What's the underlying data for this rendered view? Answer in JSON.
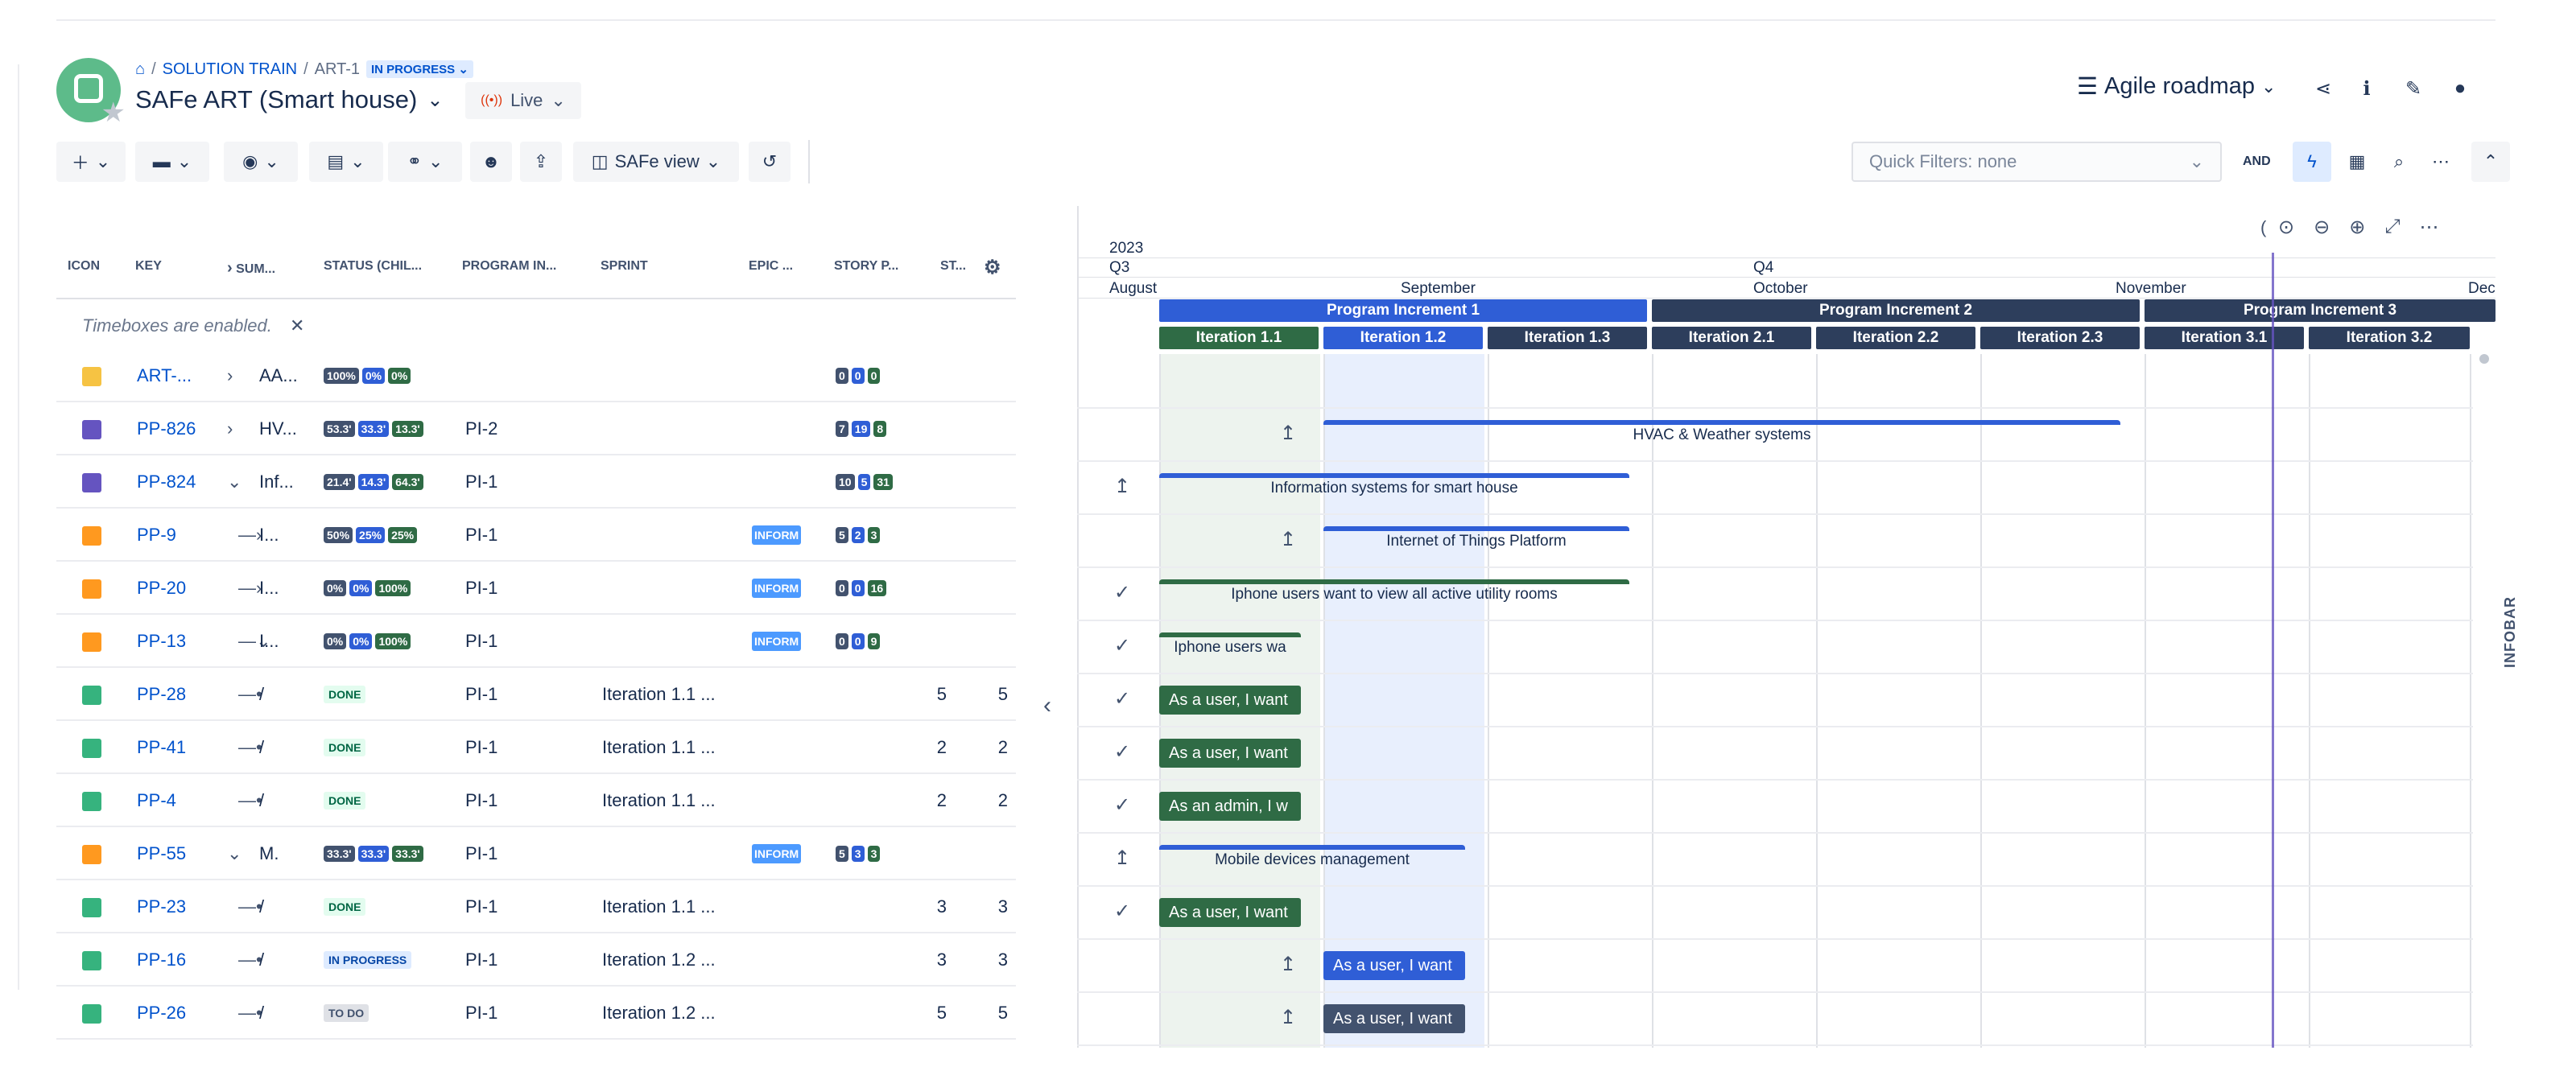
{
  "breadcrumb": {
    "home": "SOLUTION TRAIN",
    "art": "ART-1",
    "status": "IN PROGRESS"
  },
  "header": {
    "title": "SAFe ART (Smart house)",
    "live": "Live",
    "roadmap": "Agile roadmap"
  },
  "toolbar": {
    "view_label": "SAFe view",
    "quick_filters": "Quick Filters: none",
    "and_label": "AND"
  },
  "columns": [
    "ICON",
    "KEY",
    "SUM...",
    "STATUS (CHIL...",
    "PROGRAM IN...",
    "SPRINT",
    "EPIC ...",
    "STORY P...",
    "ST..."
  ],
  "timebox_note": "Timeboxes are enabled.",
  "rows": [
    {
      "key": "ART-...",
      "summary": "AA...",
      "status": [
        "100%",
        "0%",
        "0%"
      ],
      "pi": "",
      "sprint": "",
      "epic": "",
      "story": [
        "0",
        "0",
        "0"
      ],
      "sp": "",
      "st": ""
    },
    {
      "key": "PP-826",
      "summary": "HV...",
      "status": [
        "53.3'",
        "33.3'",
        "13.3'"
      ],
      "pi": "PI-2",
      "sprint": "",
      "epic": "",
      "story": [
        "7",
        "19",
        "8"
      ],
      "sp": "",
      "st": ""
    },
    {
      "key": "PP-824",
      "summary": "Inf...",
      "status": [
        "21.4'",
        "14.3'",
        "64.3'"
      ],
      "pi": "PI-1",
      "sprint": "",
      "epic": "",
      "story": [
        "10",
        "5",
        "31"
      ],
      "sp": "",
      "st": ""
    },
    {
      "key": "PP-9",
      "summary": "I...",
      "status": [
        "50%",
        "25%",
        "25%"
      ],
      "pi": "PI-1",
      "sprint": "",
      "epic": "INFORM",
      "story": [
        "5",
        "2",
        "3"
      ],
      "sp": "",
      "st": ""
    },
    {
      "key": "PP-20",
      "summary": "I...",
      "status": [
        "0%",
        "0%",
        "100%"
      ],
      "pi": "PI-1",
      "sprint": "",
      "epic": "INFORM",
      "story": [
        "0",
        "0",
        "16"
      ],
      "sp": "",
      "st": ""
    },
    {
      "key": "PP-13",
      "summary": "I...",
      "status": [
        "0%",
        "0%",
        "100%"
      ],
      "pi": "PI-1",
      "sprint": "",
      "epic": "INFORM",
      "story": [
        "0",
        "0",
        "9"
      ],
      "sp": "",
      "st": ""
    },
    {
      "key": "PP-28",
      "summary": "/",
      "lozenge": "DONE",
      "pi": "PI-1",
      "sprint": "Iteration 1.1 ...",
      "epic": "",
      "sp": "5",
      "st": "5"
    },
    {
      "key": "PP-41",
      "summary": "/",
      "lozenge": "DONE",
      "pi": "PI-1",
      "sprint": "Iteration 1.1 ...",
      "epic": "",
      "sp": "2",
      "st": "2"
    },
    {
      "key": "PP-4",
      "summary": "/",
      "lozenge": "DONE",
      "pi": "PI-1",
      "sprint": "Iteration 1.1 ...",
      "epic": "",
      "sp": "2",
      "st": "2"
    },
    {
      "key": "PP-55",
      "summary": "M.",
      "status": [
        "33.3'",
        "33.3'",
        "33.3'"
      ],
      "pi": "PI-1",
      "sprint": "",
      "epic": "INFORM",
      "story": [
        "5",
        "3",
        "3"
      ],
      "sp": "",
      "st": ""
    },
    {
      "key": "PP-23",
      "summary": "/",
      "lozenge": "DONE",
      "pi": "PI-1",
      "sprint": "Iteration 1.1 ...",
      "epic": "",
      "sp": "3",
      "st": "3"
    },
    {
      "key": "PP-16",
      "summary": "/",
      "lozenge": "IN PROGRESS",
      "pi": "PI-1",
      "sprint": "Iteration 1.2 ...",
      "epic": "",
      "sp": "3",
      "st": "3"
    },
    {
      "key": "PP-26",
      "summary": "/",
      "lozenge": "TO DO",
      "pi": "PI-1",
      "sprint": "Iteration 1.2 ...",
      "epic": "",
      "sp": "5",
      "st": "5"
    }
  ],
  "timeline": {
    "year": "2023",
    "quarters": [
      "Q3",
      "Q4"
    ],
    "months": [
      "August",
      "September",
      "October",
      "November",
      "Dec"
    ],
    "program_increments": [
      "Program Increment 1",
      "Program Increment 2",
      "Program Increment 3"
    ],
    "iterations": [
      "Iteration 1.1",
      "Iteration 1.2",
      "Iteration 1.3",
      "Iteration 2.1",
      "Iteration 2.2",
      "Iteration 2.3",
      "Iteration 3.1",
      "Iteration 3.2"
    ],
    "bars": [
      {
        "label": "HVAC & Weather systems"
      },
      {
        "label": "Information systems for smart house"
      },
      {
        "label": "Internet of Things Platform"
      },
      {
        "label": "Iphone users want to view all active utility rooms"
      },
      {
        "label": "Iphone users wa"
      },
      {
        "label": "As a user, I want"
      },
      {
        "label": "As a user, I want"
      },
      {
        "label": "As an admin, I w"
      },
      {
        "label": "Mobile devices management"
      },
      {
        "label": "As a user, I want"
      },
      {
        "label": "As a user, I want"
      },
      {
        "label": "As a user, I want"
      }
    ],
    "infobar": "INFOBAR"
  },
  "colors": {
    "blue": "#2f5ed6",
    "dark": "#2d3e5c",
    "green": "#2f6b45",
    "accent": "#0052cc"
  }
}
